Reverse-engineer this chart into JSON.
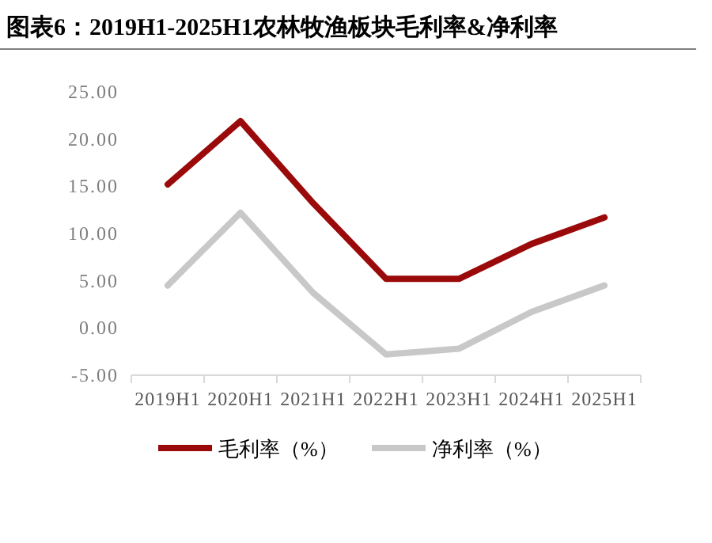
{
  "chart_data": {
    "type": "line",
    "title": "图表6：2019H1-2025H1农林牧渔板块毛利率&净利率",
    "categories": [
      "2019H1",
      "2020H1",
      "2021H1",
      "2022H1",
      "2023H1",
      "2024H1",
      "2025H1"
    ],
    "series": [
      {
        "name": "毛利率（%）",
        "color": "#9b0a0a",
        "values": [
          15.2,
          21.9,
          13.2,
          5.2,
          5.2,
          8.9,
          11.7
        ]
      },
      {
        "name": "净利率（%）",
        "color": "#c8c8c8",
        "values": [
          4.5,
          12.2,
          3.7,
          -2.8,
          -2.2,
          1.7,
          4.5
        ]
      }
    ],
    "ylim": [
      -5,
      25
    ],
    "yticks": [
      {
        "value": -5,
        "label": "-5.00"
      },
      {
        "value": 0,
        "label": "0.00"
      },
      {
        "value": 5,
        "label": "5.00"
      },
      {
        "value": 10,
        "label": "10.00"
      },
      {
        "value": 15,
        "label": "15.00"
      },
      {
        "value": 20,
        "label": "20.00"
      },
      {
        "value": 25,
        "label": "25.00"
      }
    ],
    "grid": false,
    "legend": "bottom",
    "marker": "none",
    "line_style": "solid"
  }
}
